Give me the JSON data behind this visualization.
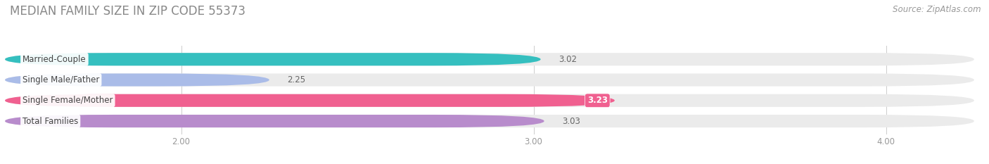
{
  "title": "MEDIAN FAMILY SIZE IN ZIP CODE 55373",
  "source": "Source: ZipAtlas.com",
  "categories": [
    "Married-Couple",
    "Single Male/Father",
    "Single Female/Mother",
    "Total Families"
  ],
  "values": [
    3.02,
    2.25,
    3.23,
    3.03
  ],
  "bar_colors": [
    "#35bfbf",
    "#aabce8",
    "#f06090",
    "#b88ccc"
  ],
  "track_color": "#ebebeb",
  "xlim_min": 1.5,
  "xlim_max": 4.25,
  "xticks": [
    2.0,
    3.0,
    4.0
  ],
  "xticklabels": [
    "2.00",
    "3.00",
    "4.00"
  ],
  "label_fontsize": 8.5,
  "value_fontsize": 8.5,
  "title_fontsize": 12,
  "source_fontsize": 8.5,
  "bg_color": "#ffffff",
  "bar_height": 0.62,
  "value_label_special": "Single Female/Mother"
}
